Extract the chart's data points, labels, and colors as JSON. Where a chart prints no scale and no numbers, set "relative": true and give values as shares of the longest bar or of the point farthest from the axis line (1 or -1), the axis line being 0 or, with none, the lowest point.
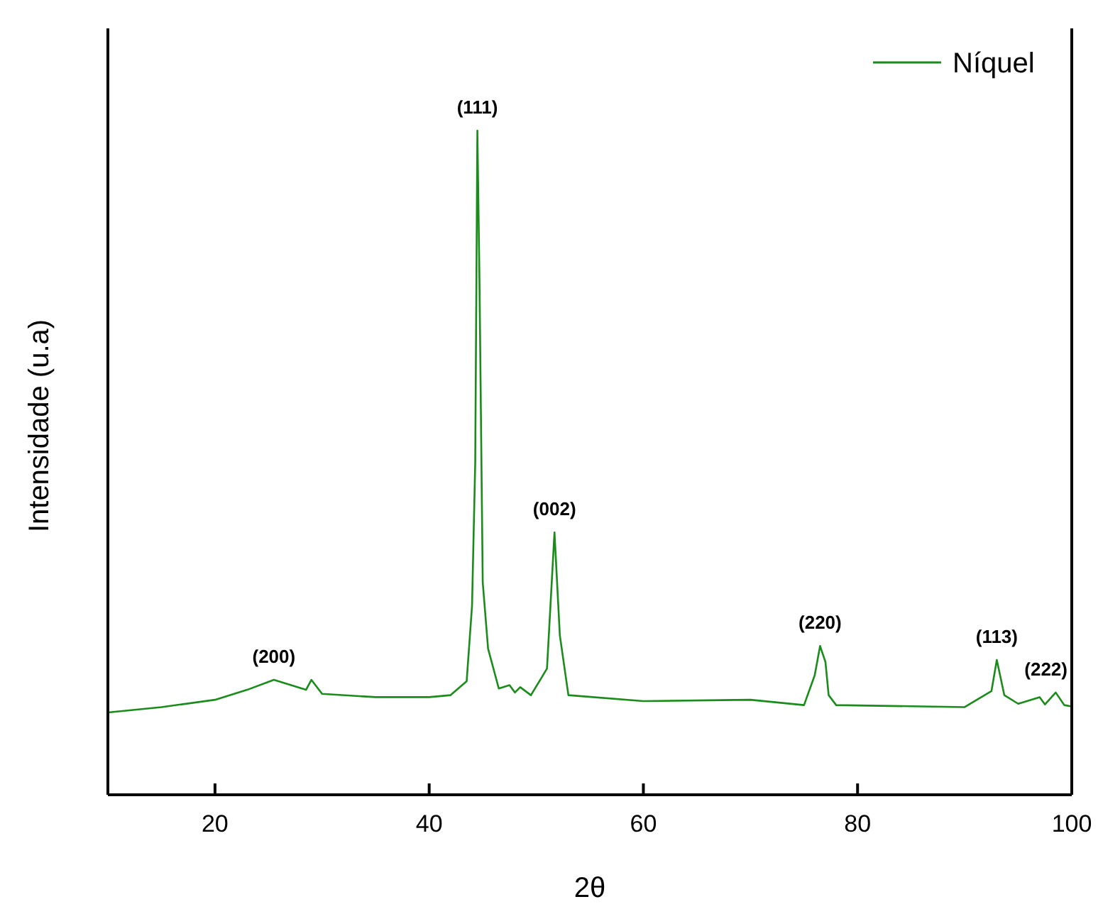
{
  "chart_data": {
    "type": "line",
    "relative": true,
    "xlabel": "2θ",
    "ylabel": "Intensidade (u.a)",
    "xlim": [
      10,
      100
    ],
    "xticks": [
      20,
      40,
      60,
      80,
      100
    ],
    "legend": "top right",
    "grid": false,
    "marker": "none",
    "line_style": "solid",
    "series": [
      {
        "name": "Níquel",
        "color": "#1a8c1a",
        "x": [
          10,
          15,
          20,
          23,
          25.5,
          28.5,
          29,
          30,
          35,
          40,
          42,
          43.5,
          44,
          44.3,
          44.5,
          44.7,
          45,
          45.5,
          46.5,
          47.5,
          48,
          48.5,
          49.5,
          51,
          51.7,
          52.2,
          53,
          60,
          70,
          75,
          76,
          76.5,
          77,
          77.3,
          78,
          90,
          92.5,
          93,
          93.7,
          95,
          97,
          97.5,
          98.5,
          99.3,
          100
        ],
        "values": [
          0.124,
          0.132,
          0.143,
          0.158,
          0.173,
          0.158,
          0.173,
          0.152,
          0.147,
          0.147,
          0.15,
          0.171,
          0.284,
          0.5,
          1,
          0.77,
          0.32,
          0.22,
          0.16,
          0.165,
          0.154,
          0.162,
          0.15,
          0.19,
          0.395,
          0.24,
          0.15,
          0.141,
          0.143,
          0.135,
          0.18,
          0.224,
          0.2,
          0.15,
          0.135,
          0.132,
          0.156,
          0.203,
          0.15,
          0.137,
          0.147,
          0.136,
          0.154,
          0.135,
          0.133
        ]
      }
    ],
    "annotations": [
      {
        "text": "(200)",
        "x": 25.5,
        "y": 0.173
      },
      {
        "text": "(111)",
        "x": 44.5,
        "y": 1
      },
      {
        "text": "(002)",
        "x": 51.7,
        "y": 0.395
      },
      {
        "text": "(220)",
        "x": 76.5,
        "y": 0.224
      },
      {
        "text": "(113)",
        "x": 93,
        "y": 0.203
      },
      {
        "text": "(222)",
        "x": 98.5,
        "y": 0.154
      }
    ]
  }
}
